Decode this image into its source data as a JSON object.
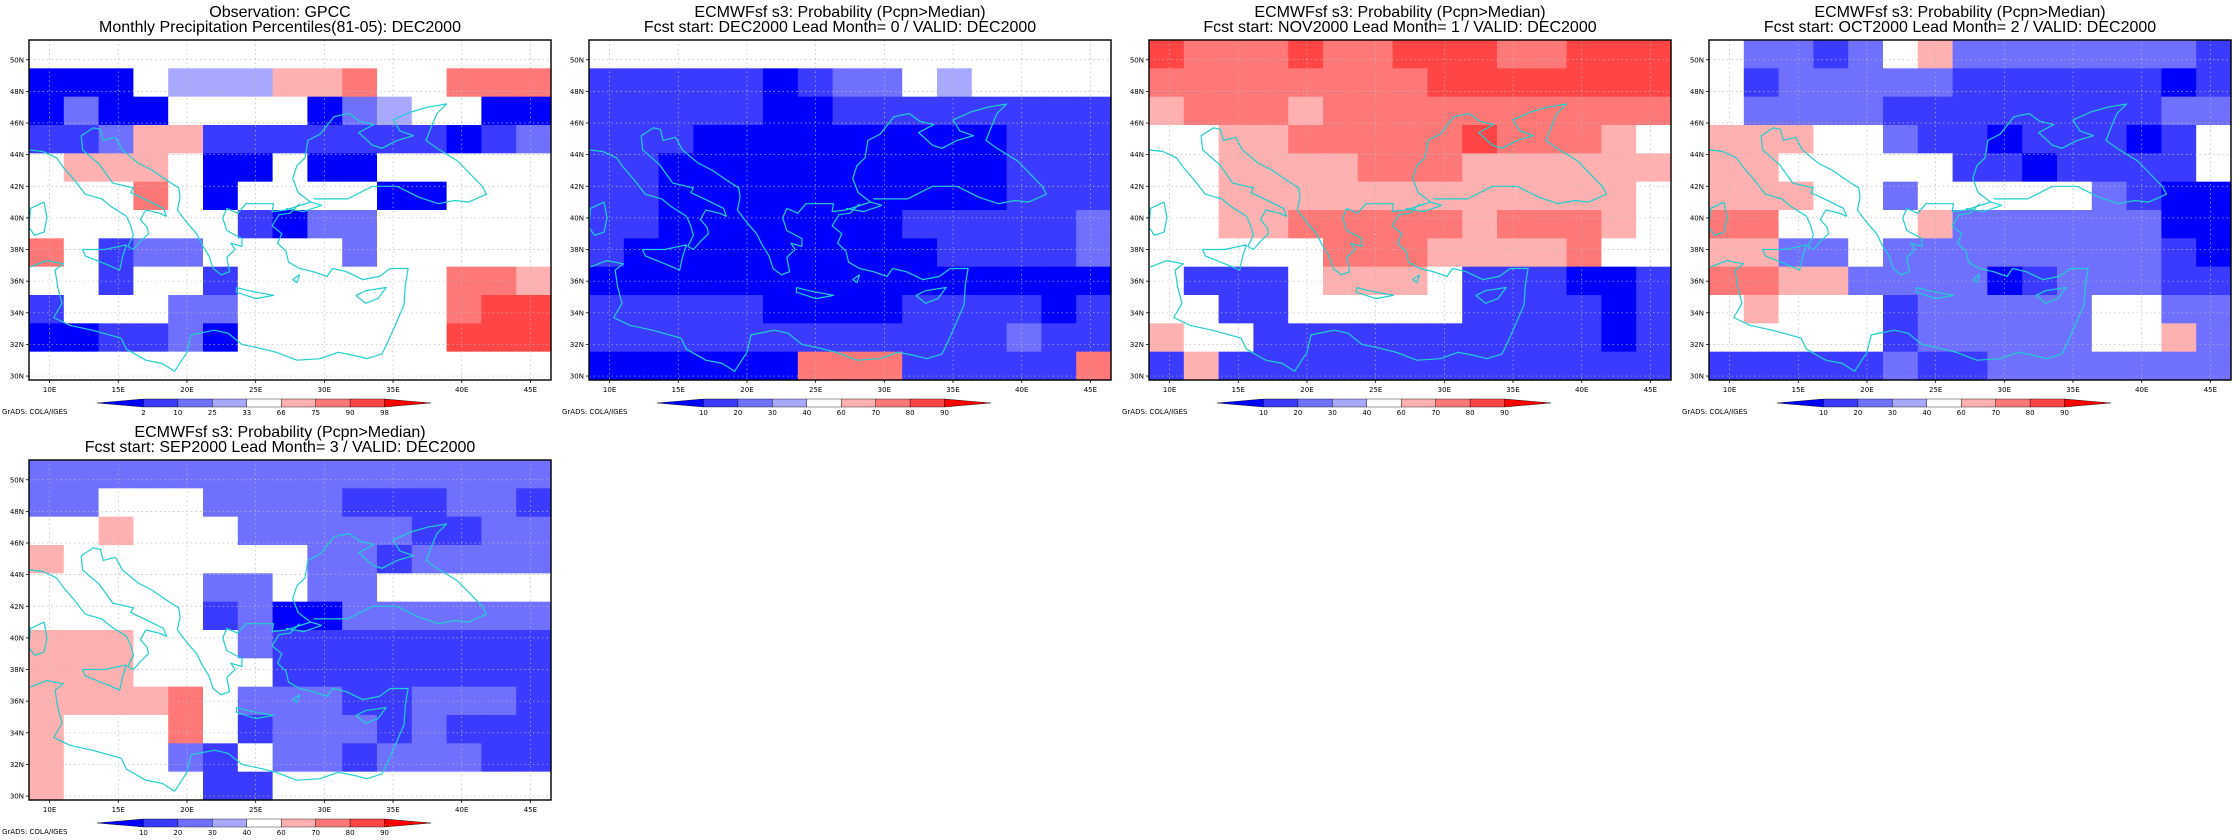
{
  "colors": {
    "blue_scale": [
      "#0000ff",
      "#3b3bff",
      "#7070ff",
      "#a8a8ff"
    ],
    "neutral": "#ffffff",
    "red_scale": [
      "#ffb0b0",
      "#ff7878",
      "#ff4545",
      "#ff0000"
    ],
    "coast": "#20cfcf",
    "grid": "#b8b8b8"
  },
  "credit": "GrADS: COLA/IGES",
  "chart_data": [
    {
      "type": "heatmap",
      "title": "Observation: GPCC",
      "subtitle": "Monthly Precipitation Percentiles(81-05): DEC2000",
      "xticks": [
        "10E",
        "15E",
        "20E",
        "25E",
        "30E",
        "35E",
        "40E",
        "45E"
      ],
      "yticks": [
        "30N",
        "32N",
        "34N",
        "36N",
        "38N",
        "40N",
        "42N",
        "44N",
        "46N",
        "48N",
        "50N"
      ],
      "xlim": [
        8.5,
        46.5
      ],
      "ylim": [
        29.75,
        51.25
      ],
      "legend_labels": [
        "2",
        "10",
        "25",
        "33",
        "66",
        "75",
        "90",
        "98"
      ],
      "grid_levels": [
        "0 0 0 0 0 0 0 0 0 0 0 0 0 0 0",
        "1 1 1 0 4 4 4 5 5 6 0 0 6 6 6",
        "1 3 1 1 0 0 0 0 1 3 4 0 0 1 1",
        "2 2 3 5 5 2 2 2 2 2 2 2 1 2 3",
        "0 5 5 5 0 1 1 0 1 1 0 0 0 0 0",
        "0 0 0 6 0 1 0 0 0 0 1 1 0 0 0",
        "0 0 0 0 0 0 2 1 3 3 0 0 0 0 0",
        "6 0 2 3 3 0 0 0 0 3 0 0 0 0 0",
        "0 0 2 0 0 2 0 0 0 0 0 0 6 6 5",
        "2 0 0 0 3 3 0 0 0 0 0 0 6 7 7",
        "1 1 2 2 3 1 0 0 0 0 0 0 7 7 7",
        "0 0 0 0 0 0 0 0 0 0 0 0 0 0 0"
      ]
    },
    {
      "type": "heatmap",
      "title": "ECMWFsf s3: Probability (Pcpn>Median)",
      "subtitle": "Fcst start: DEC2000   Lead Month= 0 / VALID: DEC2000",
      "xticks": [
        "10E",
        "15E",
        "20E",
        "25E",
        "30E",
        "35E",
        "40E",
        "45E"
      ],
      "yticks": [
        "30N",
        "32N",
        "34N",
        "36N",
        "38N",
        "40N",
        "42N",
        "44N",
        "46N",
        "48N",
        "50N"
      ],
      "xlim": [
        8.5,
        46.5
      ],
      "ylim": [
        29.75,
        51.25
      ],
      "legend_labels": [
        "10",
        "20",
        "30",
        "40",
        "60",
        "70",
        "80",
        "90"
      ],
      "grid_levels": [
        "0 0 0 0 0 0 0 0 0 0 0 0 0 0 0",
        "2 2 2 2 2 1 2 3 3 0 4 0 0 0 0",
        "2 2 2 2 2 1 1 2 2 2 2 2 2 2 2",
        "2 2 2 1 1 1 1 1 1 1 1 1 2 2 2",
        "2 2 1 1 1 1 1 1 1 1 1 1 2 2 2",
        "2 2 1 1 1 1 1 1 1 1 1 1 2 2 2",
        "2 2 1 1 1 1 1 1 1 2 2 2 2 2 3",
        "2 1 1 1 1 1 1 1 1 1 2 2 2 2 3",
        "1 1 1 1 1 1 1 1 1 1 1 1 1 1 1",
        "2 2 2 2 2 1 1 1 1 2 2 2 2 1 2",
        "2 2 2 2 2 2 2 2 2 2 2 2 3 2 2",
        "1 1 1 1 1 1 6 6 6 2 2 2 2 2 6"
      ]
    },
    {
      "type": "heatmap",
      "title": "ECMWFsf s3: Probability (Pcpn>Median)",
      "subtitle": "Fcst start: NOV2000   Lead Month= 1 / VALID: DEC2000",
      "xticks": [
        "10E",
        "15E",
        "20E",
        "25E",
        "30E",
        "35E",
        "40E",
        "45E"
      ],
      "yticks": [
        "30N",
        "32N",
        "34N",
        "36N",
        "38N",
        "40N",
        "42N",
        "44N",
        "46N",
        "48N",
        "50N"
      ],
      "xlim": [
        8.5,
        46.5
      ],
      "ylim": [
        29.75,
        51.25
      ],
      "legend_labels": [
        "10",
        "20",
        "30",
        "40",
        "60",
        "70",
        "80",
        "90"
      ],
      "grid_levels": [
        "7 6 6 6 7 6 6 7 7 7 6 6 7 7 7",
        "6 6 6 6 6 6 6 6 7 7 7 7 7 7 7",
        "5 6 6 6 5 6 6 6 6 6 6 6 6 6 6",
        "0 0 5 5 6 6 6 6 6 7 6 6 6 5 0",
        "0 0 5 5 5 5 6 6 6 5 5 5 5 5 5",
        "0 0 5 5 5 5 5 5 5 5 5 5 5 5 0",
        "0 0 5 5 6 6 6 6 6 5 6 6 6 5 0",
        "0 0 0 0 0 6 6 6 5 5 5 5 6 0 0",
        "0 2 2 2 0 5 5 5 0 2 2 2 1 1 2",
        "0 0 2 2 0 0 0 0 0 2 2 2 2 1 2",
        "5 0 0 2 2 2 2 2 2 2 2 2 2 1 2",
        "2 5 2 2 2 2 2 2 2 2 2 2 2 2 2"
      ]
    },
    {
      "type": "heatmap",
      "title": "ECMWFsf s3: Probability (Pcpn>Median)",
      "subtitle": "Fcst start: OCT2000   Lead Month= 2 / VALID: DEC2000",
      "xticks": [
        "10E",
        "15E",
        "20E",
        "25E",
        "30E",
        "35E",
        "40E",
        "45E"
      ],
      "yticks": [
        "30N",
        "32N",
        "34N",
        "36N",
        "38N",
        "40N",
        "42N",
        "44N",
        "46N",
        "48N",
        "50N"
      ],
      "xlim": [
        8.5,
        46.5
      ],
      "ylim": [
        29.75,
        51.25
      ],
      "legend_labels": [
        "10",
        "20",
        "30",
        "40",
        "60",
        "70",
        "80",
        "90"
      ],
      "grid_levels": [
        "0 3 3 2 3 0 5 3 3 3 3 3 3 3 2",
        "0 2 3 3 3 3 3 2 2 2 2 2 2 1 2",
        "0 3 3 3 3 2 2 2 2 2 2 2 2 3 3",
        "5 5 5 0 0 3 2 2 1 2 2 2 1 2 0",
        "5 5 0 0 0 0 0 2 2 1 2 2 2 2 0",
        "5 5 5 0 0 3 0 0 0 0 0 3 2 1 1",
        "6 6 0 0 0 0 5 3 3 3 3 3 3 1 1",
        "5 5 3 3 0 3 3 3 3 3 3 3 3 2 1",
        "6 6 5 5 3 3 3 3 1 2 3 3 3 2 2",
        "0 5 0 0 0 2 3 3 3 3 3 0 0 3 3",
        "0 0 0 0 0 2 3 3 3 3 3 0 0 5 3",
        "2 2 2 2 2 3 2 2 3 3 3 3 3 3 3"
      ]
    },
    {
      "type": "heatmap",
      "title": "ECMWFsf s3: Probability (Pcpn>Median)",
      "subtitle": "Fcst start: SEP2000   Lead Month= 3 / VALID: DEC2000",
      "xticks": [
        "10E",
        "15E",
        "20E",
        "25E",
        "30E",
        "35E",
        "40E",
        "45E"
      ],
      "yticks": [
        "30N",
        "32N",
        "34N",
        "36N",
        "38N",
        "40N",
        "42N",
        "44N",
        "46N",
        "48N",
        "50N"
      ],
      "xlim": [
        8.5,
        46.5
      ],
      "ylim": [
        29.75,
        51.25
      ],
      "legend_labels": [
        "10",
        "20",
        "30",
        "40",
        "60",
        "70",
        "80",
        "90"
      ],
      "grid_levels": [
        "3 3 3 3 3 3 3 3 3 3 3 3 3 3 3",
        "3 3 0 0 0 3 3 3 3 2 2 2 3 3 2",
        "0 0 5 0 0 0 3 3 3 3 3 2 2 3 3",
        "5 0 0 0 0 0 0 0 3 3 2 3 3 3 3",
        "0 0 0 0 0 3 3 0 3 3 0 0 0 0 0",
        "0 0 0 0 0 2 3 1 1 3 3 3 3 3 3",
        "5 5 5 0 0 0 3 2 2 2 2 2 2 2 2",
        "5 5 5 0 0 0 0 2 2 2 2 2 2 2 2",
        "5 5 5 5 6 0 3 3 3 2 2 3 3 3 2",
        "5 0 0 0 6 0 2 3 3 3 2 3 2 2 2",
        "5 0 0 0 3 2 0 3 3 2 3 3 3 2 2",
        "5 0 0 0 0 2 2 0 0 0 0 0 0 0 0"
      ]
    }
  ]
}
